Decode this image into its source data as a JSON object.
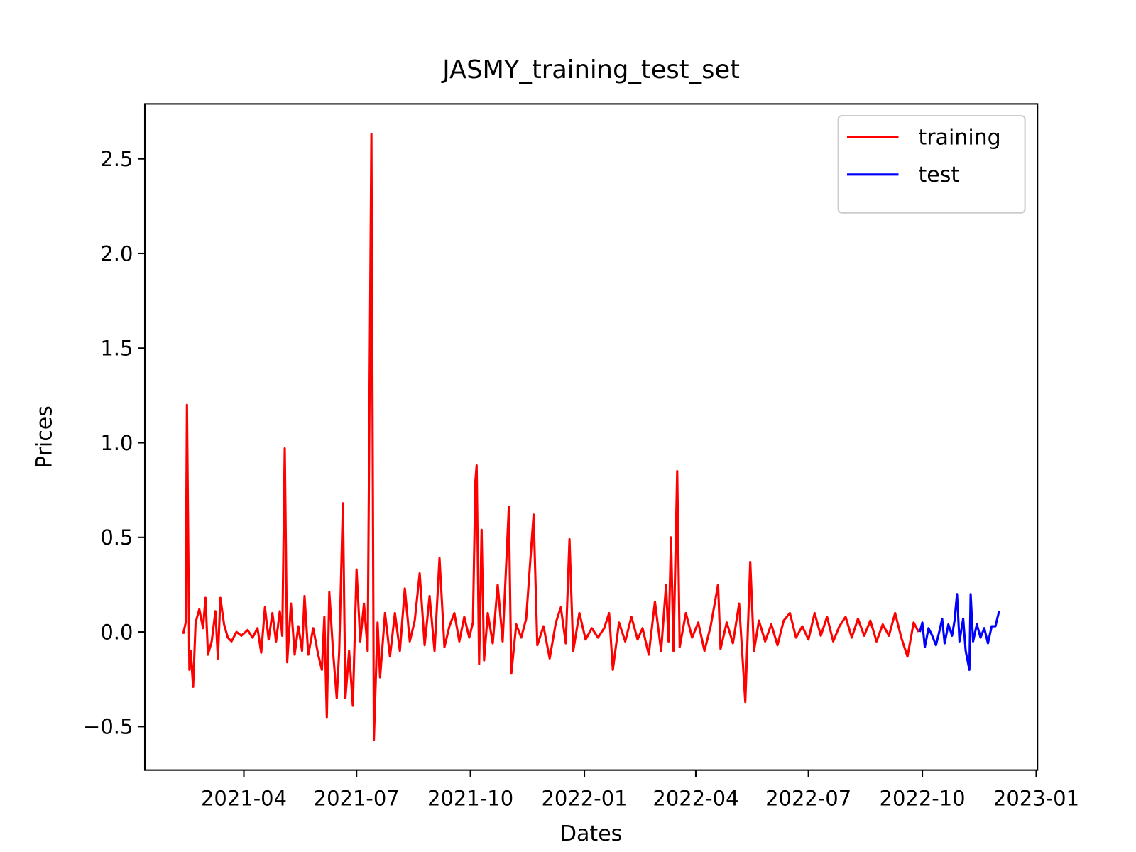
{
  "chart_data": {
    "type": "line",
    "title": "JASMY_training_test_set",
    "x_label": "Dates",
    "y_label": "Prices",
    "xlim": [
      "2021-01-11",
      "2023-01-02"
    ],
    "xticks": [
      "2021-04",
      "2021-07",
      "2021-10",
      "2022-01",
      "2022-04",
      "2022-07",
      "2022-10",
      "2023-01"
    ],
    "ylim": [
      -0.73,
      2.79
    ],
    "yticks": [
      {
        "value": -0.5,
        "label": "−0.5"
      },
      {
        "value": 0,
        "label": "0.0"
      },
      0.5,
      {
        "value": 1,
        "label": "1.0"
      },
      1.5,
      {
        "value": 2,
        "label": "2.0"
      },
      2.5
    ],
    "grid": false,
    "legend": "upper right",
    "series": [
      {
        "name": "training",
        "color": "#ff0000",
        "x": [
          "2021-02-11",
          "2021-02-13",
          "2021-02-14",
          "2021-02-16",
          "2021-02-17",
          "2021-02-19",
          "2021-02-21",
          "2021-02-24",
          "2021-02-27",
          "2021-03-01",
          "2021-03-03",
          "2021-03-06",
          "2021-03-09",
          "2021-03-11",
          "2021-03-13",
          "2021-03-16",
          "2021-03-19",
          "2021-03-22",
          "2021-03-26",
          "2021-03-30",
          "2021-04-04",
          "2021-04-08",
          "2021-04-12",
          "2021-04-15",
          "2021-04-18",
          "2021-04-21",
          "2021-04-24",
          "2021-04-27",
          "2021-04-30",
          "2021-05-02",
          "2021-05-04",
          "2021-05-06",
          "2021-05-09",
          "2021-05-12",
          "2021-05-15",
          "2021-05-18",
          "2021-05-20",
          "2021-05-23",
          "2021-05-27",
          "2021-05-31",
          "2021-06-03",
          "2021-06-05",
          "2021-06-07",
          "2021-06-09",
          "2021-06-12",
          "2021-06-15",
          "2021-06-17",
          "2021-06-20",
          "2021-06-22",
          "2021-06-25",
          "2021-06-28",
          "2021-07-01",
          "2021-07-04",
          "2021-07-07",
          "2021-07-10",
          "2021-07-13",
          "2021-07-15",
          "2021-07-18",
          "2021-07-20",
          "2021-07-24",
          "2021-07-28",
          "2021-08-01",
          "2021-08-05",
          "2021-08-09",
          "2021-08-13",
          "2021-08-17",
          "2021-08-21",
          "2021-08-25",
          "2021-08-29",
          "2021-09-02",
          "2021-09-06",
          "2021-09-10",
          "2021-09-14",
          "2021-09-18",
          "2021-09-22",
          "2021-09-26",
          "2021-09-30",
          "2021-10-03",
          "2021-10-05",
          "2021-10-06",
          "2021-10-08",
          "2021-10-10",
          "2021-10-12",
          "2021-10-15",
          "2021-10-19",
          "2021-10-23",
          "2021-10-27",
          "2021-11-01",
          "2021-11-03",
          "2021-11-07",
          "2021-11-11",
          "2021-11-15",
          "2021-11-21",
          "2021-11-24",
          "2021-11-29",
          "2021-12-04",
          "2021-12-09",
          "2021-12-13",
          "2021-12-17",
          "2021-12-20",
          "2021-12-23",
          "2021-12-28",
          "2022-01-02",
          "2022-01-07",
          "2022-01-12",
          "2022-01-17",
          "2022-01-21",
          "2022-01-24",
          "2022-01-29",
          "2022-02-03",
          "2022-02-08",
          "2022-02-13",
          "2022-02-17",
          "2022-02-22",
          "2022-02-27",
          "2022-03-04",
          "2022-03-08",
          "2022-03-10",
          "2022-03-12",
          "2022-03-14",
          "2022-03-17",
          "2022-03-19",
          "2022-03-24",
          "2022-03-29",
          "2022-04-03",
          "2022-04-08",
          "2022-04-13",
          "2022-04-19",
          "2022-04-21",
          "2022-04-26",
          "2022-05-01",
          "2022-05-06",
          "2022-05-11",
          "2022-05-15",
          "2022-05-18",
          "2022-05-22",
          "2022-05-27",
          "2022-06-01",
          "2022-06-06",
          "2022-06-11",
          "2022-06-16",
          "2022-06-21",
          "2022-06-26",
          "2022-07-01",
          "2022-07-06",
          "2022-07-11",
          "2022-07-16",
          "2022-07-21",
          "2022-07-26",
          "2022-07-31",
          "2022-08-05",
          "2022-08-10",
          "2022-08-15",
          "2022-08-20",
          "2022-08-25",
          "2022-08-30",
          "2022-09-04",
          "2022-09-09",
          "2022-09-14",
          "2022-09-19",
          "2022-09-24",
          "2022-09-28"
        ],
        "values": [
          -0.01,
          0.05,
          1.2,
          -0.2,
          -0.1,
          -0.29,
          0.05,
          0.12,
          0.02,
          0.18,
          -0.12,
          -0.05,
          0.11,
          -0.14,
          0.18,
          0.04,
          -0.03,
          -0.05,
          0.0,
          -0.02,
          0.01,
          -0.03,
          0.02,
          -0.11,
          0.13,
          -0.04,
          0.1,
          -0.05,
          0.11,
          -0.02,
          0.97,
          -0.16,
          0.15,
          -0.12,
          0.03,
          -0.1,
          0.19,
          -0.12,
          0.02,
          -0.12,
          -0.2,
          0.08,
          -0.45,
          0.21,
          -0.1,
          -0.35,
          -0.1,
          0.68,
          -0.35,
          -0.1,
          -0.39,
          0.33,
          -0.05,
          0.15,
          -0.1,
          2.63,
          -0.57,
          0.05,
          -0.24,
          0.1,
          -0.13,
          0.1,
          -0.1,
          0.23,
          -0.05,
          0.06,
          0.31,
          -0.07,
          0.19,
          -0.1,
          0.39,
          -0.08,
          0.03,
          0.1,
          -0.05,
          0.08,
          -0.03,
          0.05,
          0.8,
          0.88,
          -0.17,
          0.54,
          -0.15,
          0.1,
          -0.06,
          0.25,
          -0.05,
          0.66,
          -0.22,
          0.04,
          -0.03,
          0.07,
          0.62,
          -0.07,
          0.03,
          -0.14,
          0.05,
          0.13,
          -0.06,
          0.49,
          -0.1,
          0.1,
          -0.04,
          0.02,
          -0.03,
          0.02,
          0.1,
          -0.2,
          0.05,
          -0.05,
          0.08,
          -0.04,
          0.02,
          -0.12,
          0.16,
          -0.1,
          0.25,
          -0.05,
          0.5,
          -0.1,
          0.85,
          -0.08,
          0.1,
          -0.03,
          0.05,
          -0.1,
          0.03,
          0.25,
          -0.09,
          0.05,
          -0.06,
          0.15,
          -0.37,
          0.37,
          -0.1,
          0.06,
          -0.05,
          0.04,
          -0.07,
          0.06,
          0.1,
          -0.03,
          0.03,
          -0.04,
          0.1,
          -0.02,
          0.08,
          -0.05,
          0.03,
          0.08,
          -0.03,
          0.07,
          -0.02,
          0.06,
          -0.05,
          0.04,
          -0.02,
          0.1,
          -0.03,
          -0.13,
          0.05,
          0.0
        ]
      },
      {
        "name": "test",
        "color": "#0000ff",
        "x": [
          "2022-09-29",
          "2022-10-01",
          "2022-10-03",
          "2022-10-06",
          "2022-10-09",
          "2022-10-12",
          "2022-10-15",
          "2022-10-17",
          "2022-10-19",
          "2022-10-22",
          "2022-10-25",
          "2022-10-27",
          "2022-10-29",
          "2022-10-31",
          "2022-11-03",
          "2022-11-05",
          "2022-11-08",
          "2022-11-09",
          "2022-11-11",
          "2022-11-14",
          "2022-11-17",
          "2022-11-20",
          "2022-11-23",
          "2022-11-26",
          "2022-11-29",
          "2022-12-02"
        ],
        "values": [
          0.0,
          0.05,
          -0.08,
          0.02,
          -0.02,
          -0.07,
          0.01,
          0.07,
          -0.06,
          0.04,
          -0.02,
          0.06,
          0.2,
          -0.05,
          0.07,
          -0.1,
          -0.2,
          0.2,
          -0.05,
          0.04,
          -0.03,
          0.02,
          -0.06,
          0.03,
          0.03,
          0.11
        ]
      }
    ]
  }
}
